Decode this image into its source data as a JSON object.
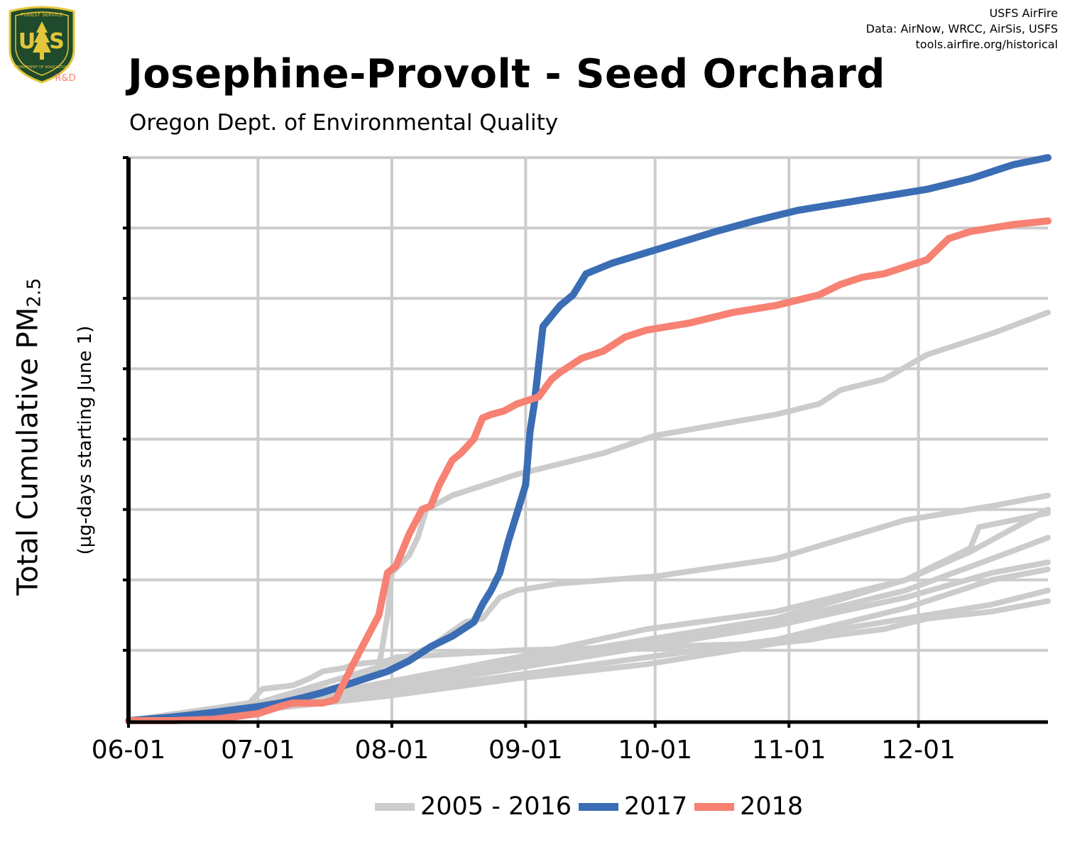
{
  "header": {
    "title": "Josephine-Provolt - Seed Orchard",
    "subtitle": "Oregon Dept. of Environmental Quality",
    "credits": [
      "USFS AirFire",
      "Data: AirNow, WRCC, AirSis, USFS",
      "tools.airfire.org/historical"
    ]
  },
  "logo": {
    "top_text": "FOREST SERVICE",
    "bottom_text": "DEPARTMENT OF AGRICULTURE",
    "letters_left": "U",
    "letters_right": "S",
    "rd": "R&D"
  },
  "axes": {
    "ylabel_main": "Total Cumulative PM",
    "ylabel_sub_script": "2.5",
    "ylabel_secondary": "(µg-days starting June 1)"
  },
  "legend": [
    {
      "label": "2005 - 2016",
      "color": "#cccccc"
    },
    {
      "label": "2017",
      "color": "#3a6db4"
    },
    {
      "label": "2018",
      "color": "#f78172"
    }
  ],
  "colors": {
    "grid": "#cccccc",
    "history": "#cccccc",
    "y2017": "#3a6db4",
    "y2018": "#f78172",
    "axis": "#000000"
  },
  "chart_data": {
    "type": "line",
    "x_ticks": [
      "06-01",
      "07-01",
      "08-01",
      "09-01",
      "10-01",
      "11-01",
      "12-01"
    ],
    "x_tick_days": [
      0,
      30,
      61,
      92,
      122,
      153,
      183
    ],
    "xlim": [
      0,
      213
    ],
    "ylim": [
      0,
      8
    ],
    "y_gridlines": [
      1,
      2,
      3,
      4,
      5,
      6,
      7,
      8
    ],
    "y_tick_labels": "none",
    "x_unit": "days since June 1",
    "y_unit": "relative gridline units",
    "series": [
      {
        "name": "2005 - 2016",
        "group": "history",
        "x": [
          0,
          28,
          31,
          38,
          42,
          45,
          50,
          52,
          60,
          62,
          90,
          122,
          150,
          158,
          162,
          175,
          185,
          200,
          213
        ],
        "y": [
          0,
          0.25,
          0.45,
          0.5,
          0.6,
          0.7,
          0.75,
          0.8,
          0.85,
          0.9,
          1.0,
          1.05,
          1.1,
          1.15,
          1.2,
          1.3,
          1.45,
          1.55,
          1.7
        ]
      },
      {
        "name": "2005 - 2016",
        "group": "history",
        "x": [
          0,
          30,
          50,
          58,
          60,
          61,
          65,
          67,
          69,
          75,
          80,
          90,
          100,
          110,
          122,
          150,
          160,
          165,
          175,
          185,
          200,
          213
        ],
        "y": [
          0,
          0.25,
          0.5,
          0.75,
          1.5,
          2.1,
          2.35,
          2.6,
          3.0,
          3.2,
          3.3,
          3.5,
          3.65,
          3.8,
          4.05,
          4.35,
          4.5,
          4.7,
          4.85,
          5.2,
          5.5,
          5.8
        ]
      },
      {
        "name": "2005 - 2016",
        "group": "history",
        "x": [
          0,
          30,
          60,
          70,
          78,
          82,
          86,
          90,
          100,
          122,
          150,
          180,
          200,
          213
        ],
        "y": [
          0,
          0.25,
          0.8,
          1.05,
          1.4,
          1.45,
          1.75,
          1.85,
          1.95,
          2.05,
          2.3,
          2.85,
          3.05,
          3.2
        ]
      },
      {
        "name": "2005 - 2016",
        "group": "history",
        "x": [
          0,
          30,
          60,
          90,
          120,
          150,
          180,
          195,
          213
        ],
        "y": [
          0,
          0.2,
          0.55,
          0.9,
          1.3,
          1.55,
          2.0,
          2.4,
          3.0
        ]
      },
      {
        "name": "2005 - 2016",
        "group": "history",
        "x": [
          0,
          30,
          60,
          90,
          120,
          150,
          180,
          195,
          197,
          213
        ],
        "y": [
          0,
          0.2,
          0.5,
          0.85,
          1.15,
          1.45,
          2.0,
          2.45,
          2.75,
          2.95
        ]
      },
      {
        "name": "2005 - 2016",
        "group": "history",
        "x": [
          0,
          30,
          60,
          90,
          120,
          150,
          180,
          200,
          213
        ],
        "y": [
          0,
          0.2,
          0.5,
          0.8,
          1.1,
          1.4,
          1.85,
          2.3,
          2.6
        ]
      },
      {
        "name": "2005 - 2016",
        "group": "history",
        "x": [
          0,
          30,
          60,
          90,
          120,
          150,
          180,
          200,
          213
        ],
        "y": [
          0,
          0.2,
          0.45,
          0.75,
          1.05,
          1.35,
          1.75,
          2.1,
          2.25
        ]
      },
      {
        "name": "2005 - 2016",
        "group": "history",
        "x": [
          0,
          30,
          60,
          90,
          120,
          150,
          180,
          200,
          213
        ],
        "y": [
          0,
          0.15,
          0.4,
          0.65,
          0.9,
          1.15,
          1.6,
          2.0,
          2.15
        ]
      },
      {
        "name": "2005 - 2016",
        "group": "history",
        "x": [
          0,
          30,
          60,
          90,
          120,
          150,
          165,
          175,
          185,
          200,
          213
        ],
        "y": [
          0,
          0.15,
          0.35,
          0.6,
          0.8,
          1.1,
          1.3,
          1.4,
          1.5,
          1.65,
          1.85
        ]
      },
      {
        "name": "2017",
        "group": "y2017",
        "x": [
          0,
          10,
          20,
          30,
          35,
          40,
          45,
          50,
          55,
          60,
          65,
          70,
          75,
          80,
          82,
          84,
          86,
          88,
          90,
          92,
          93,
          94,
          96,
          98,
          100,
          103,
          106,
          108,
          112,
          120,
          128,
          136,
          145,
          155,
          165,
          175,
          185,
          195,
          205,
          213
        ],
        "y": [
          0,
          0.05,
          0.12,
          0.2,
          0.25,
          0.32,
          0.4,
          0.5,
          0.6,
          0.7,
          0.85,
          1.05,
          1.2,
          1.4,
          1.65,
          1.85,
          2.1,
          2.55,
          2.95,
          3.35,
          4.1,
          4.5,
          5.6,
          5.75,
          5.9,
          6.05,
          6.35,
          6.4,
          6.5,
          6.65,
          6.8,
          6.95,
          7.1,
          7.25,
          7.35,
          7.45,
          7.55,
          7.7,
          7.9,
          8.0
        ]
      },
      {
        "name": "2018",
        "group": "y2018",
        "x": [
          0,
          10,
          20,
          30,
          35,
          38,
          42,
          45,
          48,
          52,
          55,
          58,
          60,
          62,
          65,
          68,
          70,
          72,
          75,
          77,
          80,
          82,
          84,
          87,
          90,
          95,
          98,
          100,
          105,
          110,
          115,
          120,
          130,
          140,
          150,
          160,
          165,
          170,
          175,
          185,
          190,
          195,
          205,
          213
        ],
        "y": [
          0,
          0,
          0.02,
          0.1,
          0.2,
          0.25,
          0.25,
          0.25,
          0.3,
          0.8,
          1.15,
          1.5,
          2.1,
          2.2,
          2.65,
          3.0,
          3.05,
          3.35,
          3.7,
          3.8,
          4.0,
          4.3,
          4.35,
          4.4,
          4.5,
          4.6,
          4.85,
          4.95,
          5.15,
          5.25,
          5.45,
          5.55,
          5.65,
          5.8,
          5.9,
          6.05,
          6.2,
          6.3,
          6.35,
          6.55,
          6.85,
          6.95,
          7.05,
          7.1
        ]
      }
    ]
  }
}
